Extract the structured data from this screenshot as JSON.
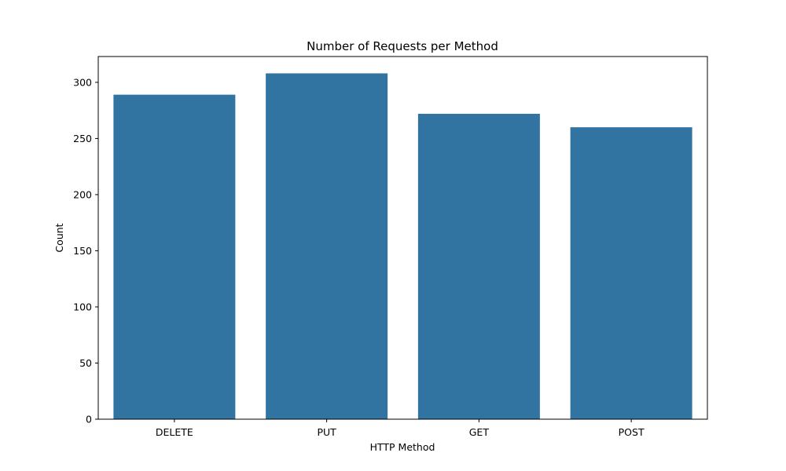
{
  "chart_data": {
    "type": "bar",
    "title": "Number of Requests per Method",
    "xlabel": "HTTP Method",
    "ylabel": "Count",
    "categories": [
      "DELETE",
      "PUT",
      "GET",
      "POST"
    ],
    "values": [
      289,
      308,
      272,
      260
    ],
    "ylim": [
      0,
      323
    ],
    "yticks": [
      0,
      50,
      100,
      150,
      200,
      250,
      300
    ],
    "grid": false,
    "bar_color": "#3274a1"
  }
}
